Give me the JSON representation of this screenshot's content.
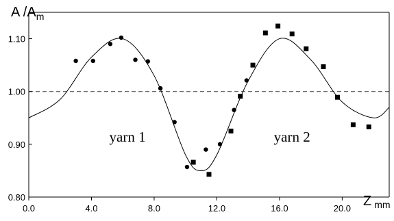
{
  "chart_data": {
    "type": "scatter",
    "title": "",
    "ylabel": {
      "main": "A /A",
      "sub": "m"
    },
    "xlabel": {
      "main": "Z",
      "sub": "mm"
    },
    "xlim": [
      0,
      23
    ],
    "ylim": [
      0.8,
      1.15
    ],
    "x_ticks": [
      0,
      4,
      8,
      12,
      16,
      20
    ],
    "x_tick_labels": [
      "0.0",
      "4.0",
      "8.0",
      "12.0",
      "16.0",
      "20.0"
    ],
    "y_ticks": [
      0.8,
      0.9,
      1.0,
      1.1
    ],
    "y_tick_labels": [
      "0.80",
      "0.90",
      "1.00",
      "1.10"
    ],
    "reference_line": {
      "y": 1.0,
      "style": "dashed"
    },
    "annotations": [
      {
        "text": "yarn 1",
        "x": 6.3,
        "y": 0.905
      },
      {
        "text": "yarn 2",
        "x": 16.8,
        "y": 0.905
      }
    ],
    "series": [
      {
        "marker": "circle",
        "x": [
          3.0,
          4.1,
          5.2,
          5.9,
          6.8,
          7.6,
          8.4,
          9.3,
          10.1,
          11.3,
          12.2,
          13.1,
          13.9
        ],
        "y": [
          1.058,
          1.058,
          1.09,
          1.102,
          1.06,
          1.057,
          1.006,
          0.942,
          0.857,
          0.89,
          0.9,
          0.965,
          1.021
        ]
      },
      {
        "marker": "square",
        "x": [
          10.5,
          11.5,
          12.9,
          13.5,
          14.3,
          15.1,
          15.9,
          16.8,
          17.7,
          18.8,
          19.7,
          20.7,
          21.7
        ],
        "y": [
          0.866,
          0.843,
          0.925,
          0.991,
          1.05,
          1.111,
          1.124,
          1.109,
          1.081,
          1.047,
          0.989,
          0.937,
          0.933
        ]
      },
      {
        "marker": "none",
        "line": "solid",
        "fit": "sinusoid",
        "x": [
          0,
          2,
          4,
          6,
          8,
          10,
          11,
          12,
          14,
          16,
          18,
          20,
          22,
          23
        ],
        "y": [
          0.95,
          0.985,
          1.065,
          1.1,
          1.03,
          0.88,
          0.85,
          0.88,
          1.02,
          1.1,
          1.06,
          0.98,
          0.95,
          0.97
        ]
      }
    ]
  }
}
